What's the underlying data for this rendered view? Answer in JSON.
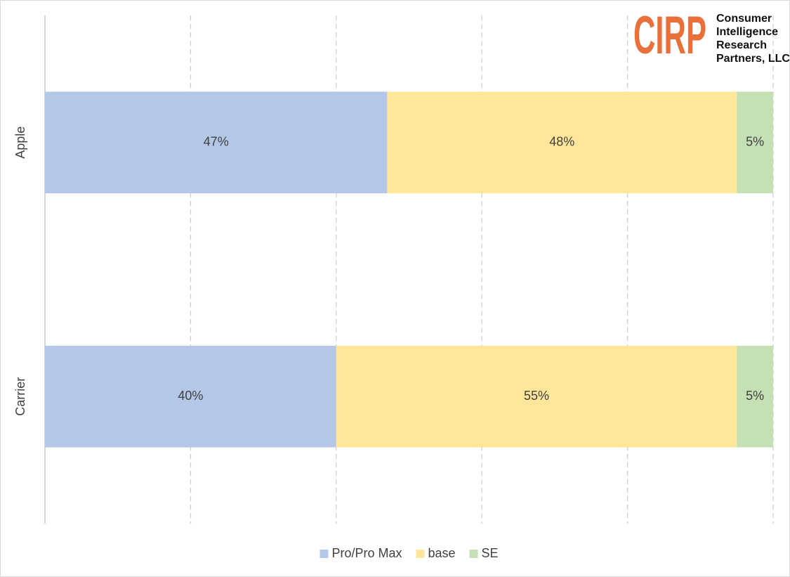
{
  "chart_data": {
    "type": "stacked-hbar",
    "categories": [
      "Apple",
      "Carrier"
    ],
    "series": [
      {
        "name": "Pro/Pro Max",
        "color": "#b4c7e7",
        "values": [
          47,
          40
        ],
        "value_labels": [
          "47%",
          "40%"
        ]
      },
      {
        "name": "base",
        "color": "#ffe699",
        "values": [
          48,
          55
        ],
        "value_labels": [
          "48%",
          "55%"
        ]
      },
      {
        "name": "SE",
        "color": "#c5e0b4",
        "values": [
          5,
          5
        ],
        "value_labels": [
          "5%",
          "5%"
        ]
      }
    ],
    "xlim": [
      0,
      100
    ],
    "xticks": [
      0,
      20,
      40,
      60,
      80,
      100
    ],
    "grid": true,
    "legend": "bottom"
  },
  "logo": {
    "mark": "CIRP",
    "lines": [
      "Consumer",
      "Intelligence",
      "Research",
      "Partners, LLC"
    ],
    "color": "#e8703a"
  }
}
